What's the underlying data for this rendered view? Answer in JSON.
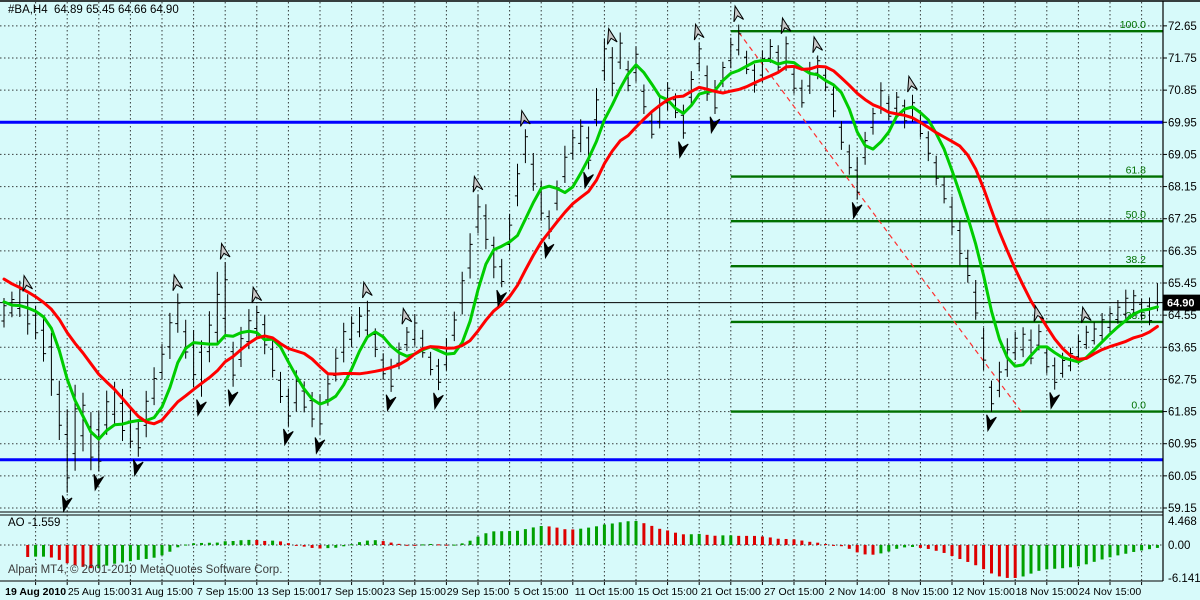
{
  "window": {
    "title": "#BA,H4  64.89 65.45 64.66 64.90",
    "copyright": "Alpari MT4, © 2001-2010 MetaQuotes Software Corp."
  },
  "price_axis": {
    "labels": [
      "59.15",
      "60.05",
      "60.95",
      "61.85",
      "62.75",
      "63.65",
      "64.55",
      "65.45",
      "66.35",
      "67.25",
      "68.15",
      "69.05",
      "69.95",
      "70.85",
      "71.75",
      "72.65"
    ],
    "values": [
      59.15,
      60.05,
      60.95,
      61.85,
      62.75,
      63.65,
      64.55,
      65.45,
      66.35,
      67.25,
      68.15,
      69.05,
      69.95,
      70.85,
      71.75,
      72.65
    ],
    "current_badge": "64.90"
  },
  "time_axis": {
    "labels": [
      "19 Aug 2010",
      "25 Aug 15:00",
      "31 Aug 15:00",
      "7 Sep 15:00",
      "13 Sep 15:00",
      "17 Sep 15:00",
      "23 Sep 15:00",
      "29 Sep 15:00",
      "5 Oct 15:00",
      "11 Oct 15:00",
      "15 Oct 15:00",
      "21 Oct 15:00",
      "27 Oct 15:00",
      "2 Nov 14:00",
      "8 Nov 15:00",
      "12 Nov 15:00",
      "18 Nov 15:00",
      "24 Nov 15:00"
    ]
  },
  "ao_pane": {
    "label": "AO -1.559",
    "value": -1.559,
    "axis_labels": [
      "4.468",
      "0.00",
      "-6.141"
    ],
    "axis_values": [
      4.468,
      0.0,
      -6.141
    ]
  },
  "colors": {
    "background": "#D7FAFA",
    "grid": "#1c1c1c",
    "bar": "#000000",
    "ma_fast": "#00CC00",
    "ma_mid": "#FF0000",
    "ma_slow": "#0000E0",
    "fib": "#007000",
    "hline": "#0000FF",
    "price_line": "#000000",
    "trendline": "#FF3030",
    "ao_up": "#00A000",
    "ao_down": "#DD0000",
    "badge_bg": "#000000",
    "badge_fg": "#FFFFFF",
    "fractal_up_fill": "#C8C8C8",
    "fractal_down_fill": "#000000"
  },
  "chart_data": {
    "type": "ohlc-bars",
    "symbol": "#BA",
    "timeframe": "H4",
    "title": "#BA,H4  64.89 65.45 64.66 64.90",
    "ylim": [
      59.0,
      72.9
    ],
    "bars_count": 147,
    "last_bar": {
      "open": 64.89,
      "high": 65.45,
      "low": 64.66,
      "close": 64.9
    },
    "median_prices": [
      64.6,
      64.8,
      65.0,
      64.6,
      64.3,
      63.8,
      63.2,
      61.9,
      60.6,
      61.3,
      61.6,
      61.0,
      60.9,
      61.8,
      62.1,
      61.7,
      61.3,
      61.1,
      61.8,
      62.5,
      63.2,
      64.0,
      64.6,
      63.8,
      63.3,
      63.1,
      63.9,
      64.6,
      65.0,
      63.2,
      63.6,
      64.1,
      64.4,
      64.0,
      63.3,
      62.5,
      62.0,
      62.4,
      62.2,
      61.9,
      61.8,
      62.4,
      63.1,
      63.8,
      64.1,
      64.3,
      64.4,
      63.8,
      63.1,
      62.8,
      63.4,
      63.9,
      64.1,
      63.7,
      63.2,
      62.9,
      63.4,
      64.2,
      65.2,
      66.2,
      67.3,
      67.0,
      66.2,
      65.7,
      66.8,
      68.2,
      69.3,
      68.5,
      67.7,
      67.1,
      67.9,
      68.7,
      69.3,
      69.6,
      69.2,
      70.3,
      71.7,
      71.4,
      71.9,
      71.2,
      71.6,
      70.6,
      69.8,
      70.2,
      70.7,
      70.4,
      69.9,
      70.9,
      71.8,
      71.0,
      70.6,
      71.3,
      71.9,
      72.2,
      71.6,
      71.2,
      71.5,
      71.9,
      71.7,
      71.9,
      71.1,
      70.7,
      71.2,
      71.5,
      71.1,
      70.5,
      69.6,
      68.9,
      68.3,
      69.2,
      70.0,
      70.6,
      70.3,
      70.5,
      70.2,
      70.3,
      69.8,
      69.3,
      68.6,
      68.0,
      67.3,
      66.6,
      65.9,
      64.9,
      63.6,
      62.3,
      62.7,
      63.3,
      63.7,
      63.8,
      63.6,
      63.9,
      63.3,
      62.9,
      63.1,
      63.3,
      63.6,
      63.9,
      64.0,
      64.2,
      64.4,
      64.6,
      64.8,
      64.9,
      64.7,
      64.6,
      64.9
    ],
    "range_anchors": [
      [
        0,
        0.9
      ],
      [
        5,
        1.4
      ],
      [
        8,
        2.7
      ],
      [
        12,
        1.7
      ],
      [
        17,
        1.3
      ],
      [
        22,
        1.3
      ],
      [
        28,
        2.3
      ],
      [
        30,
        1.2
      ],
      [
        36,
        1.2
      ],
      [
        44,
        1.1
      ],
      [
        50,
        0.9
      ],
      [
        55,
        0.9
      ],
      [
        60,
        1.5
      ],
      [
        63,
        1.1
      ],
      [
        66,
        1.3
      ],
      [
        70,
        1.0
      ],
      [
        74,
        1.2
      ],
      [
        76,
        1.5
      ],
      [
        80,
        1.0
      ],
      [
        84,
        0.9
      ],
      [
        88,
        1.1
      ],
      [
        93,
        0.9
      ],
      [
        97,
        0.9
      ],
      [
        100,
        1.0
      ],
      [
        104,
        0.8
      ],
      [
        108,
        1.2
      ],
      [
        112,
        0.8
      ],
      [
        118,
        0.9
      ],
      [
        121,
        1.3
      ],
      [
        125,
        1.2
      ],
      [
        129,
        1.0
      ],
      [
        133,
        0.9
      ],
      [
        137,
        0.8
      ],
      [
        141,
        0.9
      ],
      [
        146,
        0.79
      ]
    ],
    "moving_averages": [
      {
        "name": "fast",
        "period": 5,
        "color_key": "ma_fast",
        "width": 3
      },
      {
        "name": "mid",
        "period": 13,
        "color_key": "ma_mid",
        "width": 3
      },
      {
        "name": "slow",
        "period": 34,
        "color_key": "ma_slow",
        "width": 3.2
      }
    ],
    "fractals_up": [
      3,
      22,
      28,
      32,
      46,
      51,
      60,
      66,
      77,
      88,
      93,
      99,
      103,
      115,
      131,
      137
    ],
    "fractals_down": [
      8,
      12,
      17,
      25,
      29,
      36,
      40,
      49,
      55,
      63,
      69,
      74,
      86,
      90,
      108,
      125,
      133
    ],
    "fibonacci": {
      "start_bar": 92,
      "levels": [
        {
          "label": "100.0",
          "price": 72.5
        },
        {
          "label": "61.8",
          "price": 68.43
        },
        {
          "label": "50.0",
          "price": 67.18
        },
        {
          "label": "38.2",
          "price": 65.92
        },
        {
          "label": "23.6",
          "price": 64.36
        },
        {
          "label": "0.0",
          "price": 61.85
        }
      ]
    },
    "horizontal_lines": [
      {
        "price": 69.95,
        "width": 3
      },
      {
        "price": 60.5,
        "width": 3
      }
    ],
    "current_price_line": {
      "price": 64.9
    },
    "trendline": {
      "from_bar": 93,
      "from_price": 72.47,
      "to_bar": 129,
      "to_price": 61.78
    },
    "awesome_oscillator": {
      "fast_period": 5,
      "slow_period": 34,
      "max": 4.468,
      "min": -6.141,
      "current": -1.559
    }
  }
}
